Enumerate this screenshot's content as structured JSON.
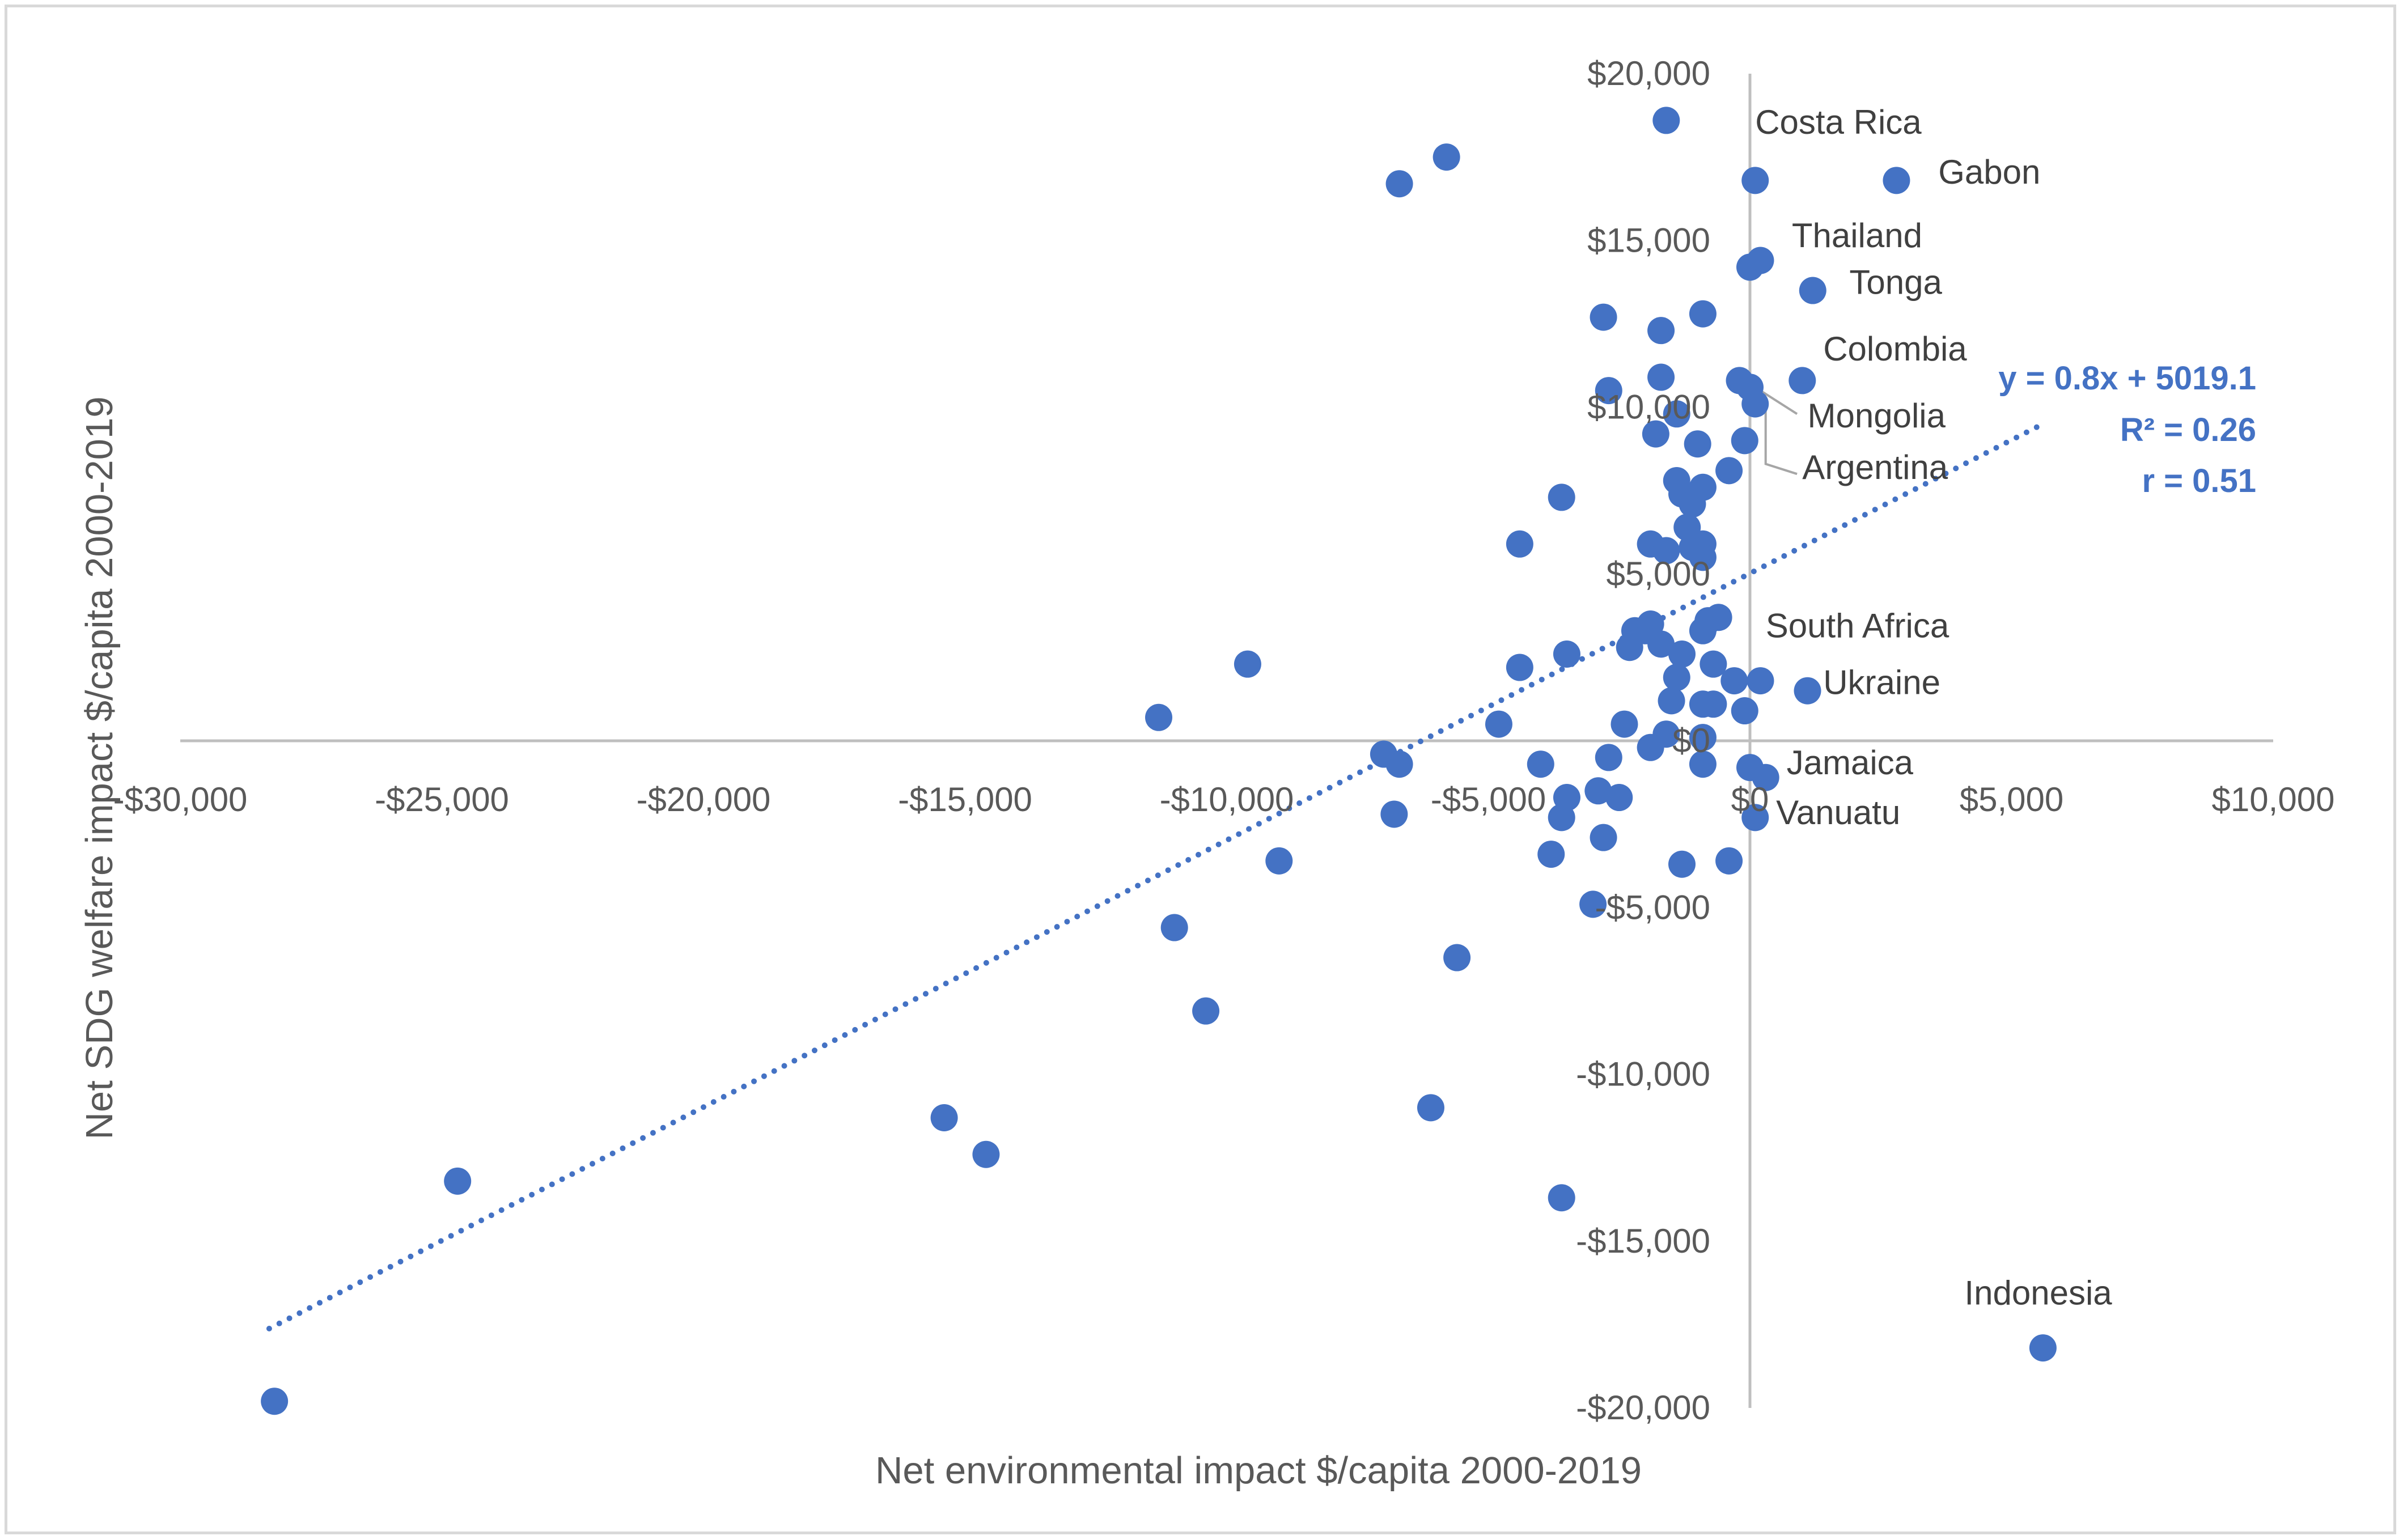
{
  "chart_data": {
    "type": "scatter",
    "title": "",
    "xlabel": "Net environmental impact $/capita 2000-2019",
    "ylabel": "Net SDG welfare impact $/capita 2000-2019",
    "xlim": [
      -30000,
      10000
    ],
    "ylim": [
      -20000,
      20000
    ],
    "x_ticks": [
      -30000,
      -25000,
      -20000,
      -15000,
      -10000,
      -5000,
      0,
      5000,
      10000
    ],
    "y_ticks": [
      -20000,
      -15000,
      -10000,
      -5000,
      0,
      5000,
      10000,
      15000,
      20000
    ],
    "x_tick_labels": [
      "-$30,000",
      "-$25,000",
      "-$20,000",
      "-$15,000",
      "-$10,000",
      "-$5,000",
      "$0",
      "$5,000",
      "$10,000"
    ],
    "y_tick_labels": [
      "-$20,000",
      "-$15,000",
      "-$10,000",
      "-$5,000",
      "$0",
      "$5,000",
      "$10,000",
      "$15,000",
      "$20,000"
    ],
    "grid": false,
    "series_color": "#4472c4",
    "trendline": {
      "type": "linear",
      "slope": 0.8,
      "intercept": 5019.1,
      "x_range": [
        -28300,
        5600
      ],
      "equation": "y = 0.8x + 5019.1",
      "r_squared": "R² = 0.26",
      "r": "r = 0.51"
    },
    "points": [
      {
        "x": -1600,
        "y": 18600
      },
      {
        "x": -5800,
        "y": 17500
      },
      {
        "x": -6700,
        "y": 16700
      },
      {
        "x": 100,
        "y": 16800
      },
      {
        "x": 2800,
        "y": 16800
      },
      {
        "x": 200,
        "y": 14400
      },
      {
        "x": 0,
        "y": 14200
      },
      {
        "x": 1200,
        "y": 13500
      },
      {
        "x": -2800,
        "y": 12700
      },
      {
        "x": -900,
        "y": 12800
      },
      {
        "x": -1700,
        "y": 12300
      },
      {
        "x": -1700,
        "y": 10900
      },
      {
        "x": -2700,
        "y": 10500
      },
      {
        "x": -1400,
        "y": 9800
      },
      {
        "x": -200,
        "y": 10800
      },
      {
        "x": 0,
        "y": 10600
      },
      {
        "x": 1000,
        "y": 10800
      },
      {
        "x": 100,
        "y": 10100
      },
      {
        "x": -1800,
        "y": 9200
      },
      {
        "x": -1000,
        "y": 8900
      },
      {
        "x": -100,
        "y": 9000
      },
      {
        "x": -400,
        "y": 8100
      },
      {
        "x": -1400,
        "y": 7800
      },
      {
        "x": -900,
        "y": 7600
      },
      {
        "x": -1300,
        "y": 7400
      },
      {
        "x": -1100,
        "y": 7100
      },
      {
        "x": -3600,
        "y": 7300
      },
      {
        "x": -1200,
        "y": 6400
      },
      {
        "x": -4400,
        "y": 5900
      },
      {
        "x": -1900,
        "y": 5900
      },
      {
        "x": -1600,
        "y": 5700
      },
      {
        "x": -1100,
        "y": 5800
      },
      {
        "x": -900,
        "y": 5900
      },
      {
        "x": -900,
        "y": 5500
      },
      {
        "x": -2000,
        "y": 3300
      },
      {
        "x": -2200,
        "y": 3300
      },
      {
        "x": -1700,
        "y": 2900
      },
      {
        "x": -2300,
        "y": 2800
      },
      {
        "x": -1300,
        "y": 2600
      },
      {
        "x": -1900,
        "y": 3500
      },
      {
        "x": -900,
        "y": 3300
      },
      {
        "x": -800,
        "y": 3600
      },
      {
        "x": -600,
        "y": 3700
      },
      {
        "x": -700,
        "y": 2300
      },
      {
        "x": -3500,
        "y": 2600
      },
      {
        "x": -4400,
        "y": 2200
      },
      {
        "x": -9600,
        "y": 2300
      },
      {
        "x": -300,
        "y": 1800
      },
      {
        "x": 200,
        "y": 1800
      },
      {
        "x": 1100,
        "y": 1500
      },
      {
        "x": -1400,
        "y": 1900
      },
      {
        "x": -1500,
        "y": 1200
      },
      {
        "x": -900,
        "y": 1100
      },
      {
        "x": -700,
        "y": 1100
      },
      {
        "x": -100,
        "y": 900
      },
      {
        "x": -11300,
        "y": 700
      },
      {
        "x": -4800,
        "y": 500
      },
      {
        "x": -2400,
        "y": 500
      },
      {
        "x": -1600,
        "y": 200
      },
      {
        "x": -1900,
        "y": -200
      },
      {
        "x": -900,
        "y": 100
      },
      {
        "x": -900,
        "y": -700
      },
      {
        "x": -2700,
        "y": -500
      },
      {
        "x": -4000,
        "y": -700
      },
      {
        "x": -7000,
        "y": -400
      },
      {
        "x": -6700,
        "y": -700
      },
      {
        "x": 0,
        "y": -800
      },
      {
        "x": 300,
        "y": -1100
      },
      {
        "x": -3500,
        "y": -1700
      },
      {
        "x": -2900,
        "y": -1500
      },
      {
        "x": -2500,
        "y": -1700
      },
      {
        "x": -3600,
        "y": -2300
      },
      {
        "x": 100,
        "y": -2300
      },
      {
        "x": -6800,
        "y": -2200
      },
      {
        "x": -2800,
        "y": -2900
      },
      {
        "x": -3800,
        "y": -3400
      },
      {
        "x": -1300,
        "y": -3700
      },
      {
        "x": -400,
        "y": -3600
      },
      {
        "x": -9000,
        "y": -3600
      },
      {
        "x": -3000,
        "y": -4900
      },
      {
        "x": -11000,
        "y": -5600
      },
      {
        "x": -5600,
        "y": -6500
      },
      {
        "x": -10400,
        "y": -8100
      },
      {
        "x": -6100,
        "y": -11000
      },
      {
        "x": -15400,
        "y": -11300
      },
      {
        "x": -14600,
        "y": -12400
      },
      {
        "x": -24700,
        "y": -13200
      },
      {
        "x": -3600,
        "y": -13700
      },
      {
        "x": 5600,
        "y": -18200
      },
      {
        "x": -28200,
        "y": -19800
      }
    ],
    "annotations": [
      {
        "label": "Costa Rica",
        "x": 100,
        "y": 18200
      },
      {
        "label": "Gabon",
        "x": 3600,
        "y": 16700
      },
      {
        "label": "Thailand",
        "x": 800,
        "y": 14800
      },
      {
        "label": "Tonga",
        "x": 1900,
        "y": 13400
      },
      {
        "label": "Colombia",
        "x": 1400,
        "y": 11400
      },
      {
        "label": "Mongolia",
        "x": 1100,
        "y": 9400
      },
      {
        "label": "Argentina",
        "x": 1000,
        "y": 7850
      },
      {
        "label": "South Africa",
        "x": 300,
        "y": 3100
      },
      {
        "label": "Ukraine",
        "x": 1400,
        "y": 1400
      },
      {
        "label": "Jamaica",
        "x": 700,
        "y": -1000
      },
      {
        "label": "Vanuatu",
        "x": 500,
        "y": -2500
      },
      {
        "label": "Indonesia",
        "x": 4100,
        "y": -16900
      }
    ],
    "leader_lines": [
      {
        "from": [
          0,
          10700
        ],
        "to": [
          900,
          9800
        ]
      },
      {
        "from": [
          300,
          10000
        ],
        "to": [
          300,
          8300
        ],
        "to2": [
          900,
          8000
        ]
      }
    ]
  }
}
